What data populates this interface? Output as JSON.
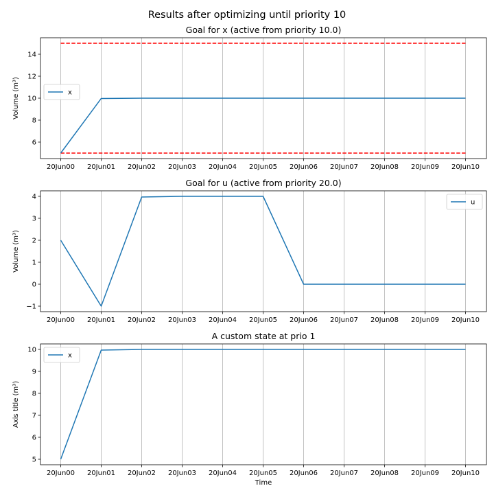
{
  "figure": {
    "suptitle": "Results after optimizing until priority 10"
  },
  "chart_data": [
    {
      "type": "line",
      "title": "Goal for x (active from priority 10.0)",
      "ylabel": "Volume (m³)",
      "xlabel": "",
      "x": [
        "20Jun00",
        "20Jun01",
        "20Jun02",
        "20Jun03",
        "20Jun04",
        "20Jun05",
        "20Jun06",
        "20Jun07",
        "20Jun08",
        "20Jun09",
        "20Jun10"
      ],
      "ylim": [
        4.5,
        15.5
      ],
      "yticks": [
        6,
        8,
        10,
        12,
        14
      ],
      "grid": "x",
      "legend": "center-left",
      "series": [
        {
          "name": "x",
          "color": "#1f77b4",
          "style": "solid",
          "values": [
            5,
            9.97,
            10,
            10,
            10,
            10,
            10,
            10,
            10,
            10,
            10
          ]
        }
      ],
      "hlines": [
        {
          "value": 15,
          "color": "#ff0000",
          "style": "dashed"
        },
        {
          "value": 5,
          "color": "#ff0000",
          "style": "dashed"
        }
      ]
    },
    {
      "type": "line",
      "title": "Goal for u (active from priority 20.0)",
      "ylabel": "Volume (m³)",
      "xlabel": "",
      "x": [
        "20Jun00",
        "20Jun01",
        "20Jun02",
        "20Jun03",
        "20Jun04",
        "20Jun05",
        "20Jun06",
        "20Jun07",
        "20Jun08",
        "20Jun09",
        "20Jun10"
      ],
      "ylim": [
        -1.25,
        4.25
      ],
      "yticks": [
        -1,
        0,
        1,
        2,
        3,
        4
      ],
      "grid": "x",
      "legend": "top-right",
      "series": [
        {
          "name": "u",
          "color": "#1f77b4",
          "style": "solid",
          "values": [
            2,
            -1,
            3.97,
            4,
            4,
            4,
            0,
            0,
            0,
            0,
            0
          ]
        }
      ],
      "hlines": []
    },
    {
      "type": "line",
      "title": "A custom state at prio 1",
      "ylabel": "Axis title (m³)",
      "xlabel": "Time",
      "x": [
        "20Jun00",
        "20Jun01",
        "20Jun02",
        "20Jun03",
        "20Jun04",
        "20Jun05",
        "20Jun06",
        "20Jun07",
        "20Jun08",
        "20Jun09",
        "20Jun10"
      ],
      "ylim": [
        4.75,
        10.25
      ],
      "yticks": [
        5,
        6,
        7,
        8,
        9,
        10
      ],
      "grid": "x",
      "legend": "top-left",
      "series": [
        {
          "name": "x",
          "color": "#1f77b4",
          "style": "solid",
          "values": [
            5,
            9.97,
            10,
            10,
            10,
            10,
            10,
            10,
            10,
            10,
            10
          ]
        }
      ],
      "hlines": []
    }
  ]
}
